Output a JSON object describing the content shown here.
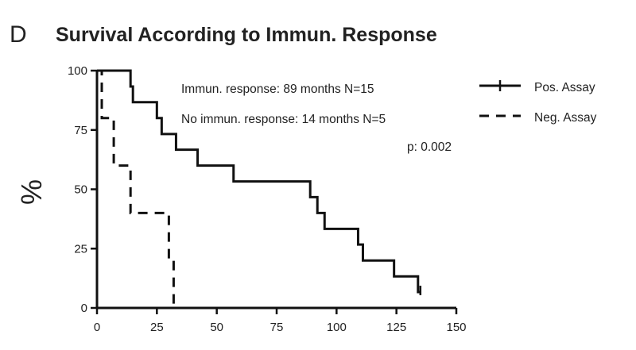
{
  "panel_letter": "D",
  "chart_data": {
    "type": "line",
    "title": "Survival According to Immun. Response",
    "xlabel": "",
    "ylabel": "%",
    "xlim": [
      0,
      150
    ],
    "ylim": [
      0,
      100
    ],
    "x_ticks": [
      0,
      25,
      50,
      75,
      100,
      125,
      150
    ],
    "y_ticks": [
      0,
      25,
      50,
      75,
      100
    ],
    "step": true,
    "legend_position": "top-right",
    "annotations": [
      "Immun. response: 89 months  N=15",
      "No immun. response: 14 months  N=5",
      "p: 0.002"
    ],
    "series": [
      {
        "name": "Pos. Assay",
        "style": "solid",
        "x": [
          0,
          14,
          15,
          25,
          27,
          33,
          42,
          57,
          89,
          92,
          95,
          109,
          111,
          124,
          134,
          135
        ],
        "y": [
          100,
          93.3,
          86.7,
          80,
          73.3,
          66.7,
          60,
          53.3,
          46.7,
          40,
          33.3,
          26.7,
          20,
          13.3,
          6.7,
          6.7
        ],
        "censored": [
          135
        ]
      },
      {
        "name": "Neg. Assay",
        "style": "dashed",
        "x": [
          0,
          2,
          7,
          14,
          30,
          32,
          33
        ],
        "y": [
          100,
          80,
          60,
          40,
          20,
          0,
          0
        ],
        "censored": []
      }
    ]
  }
}
